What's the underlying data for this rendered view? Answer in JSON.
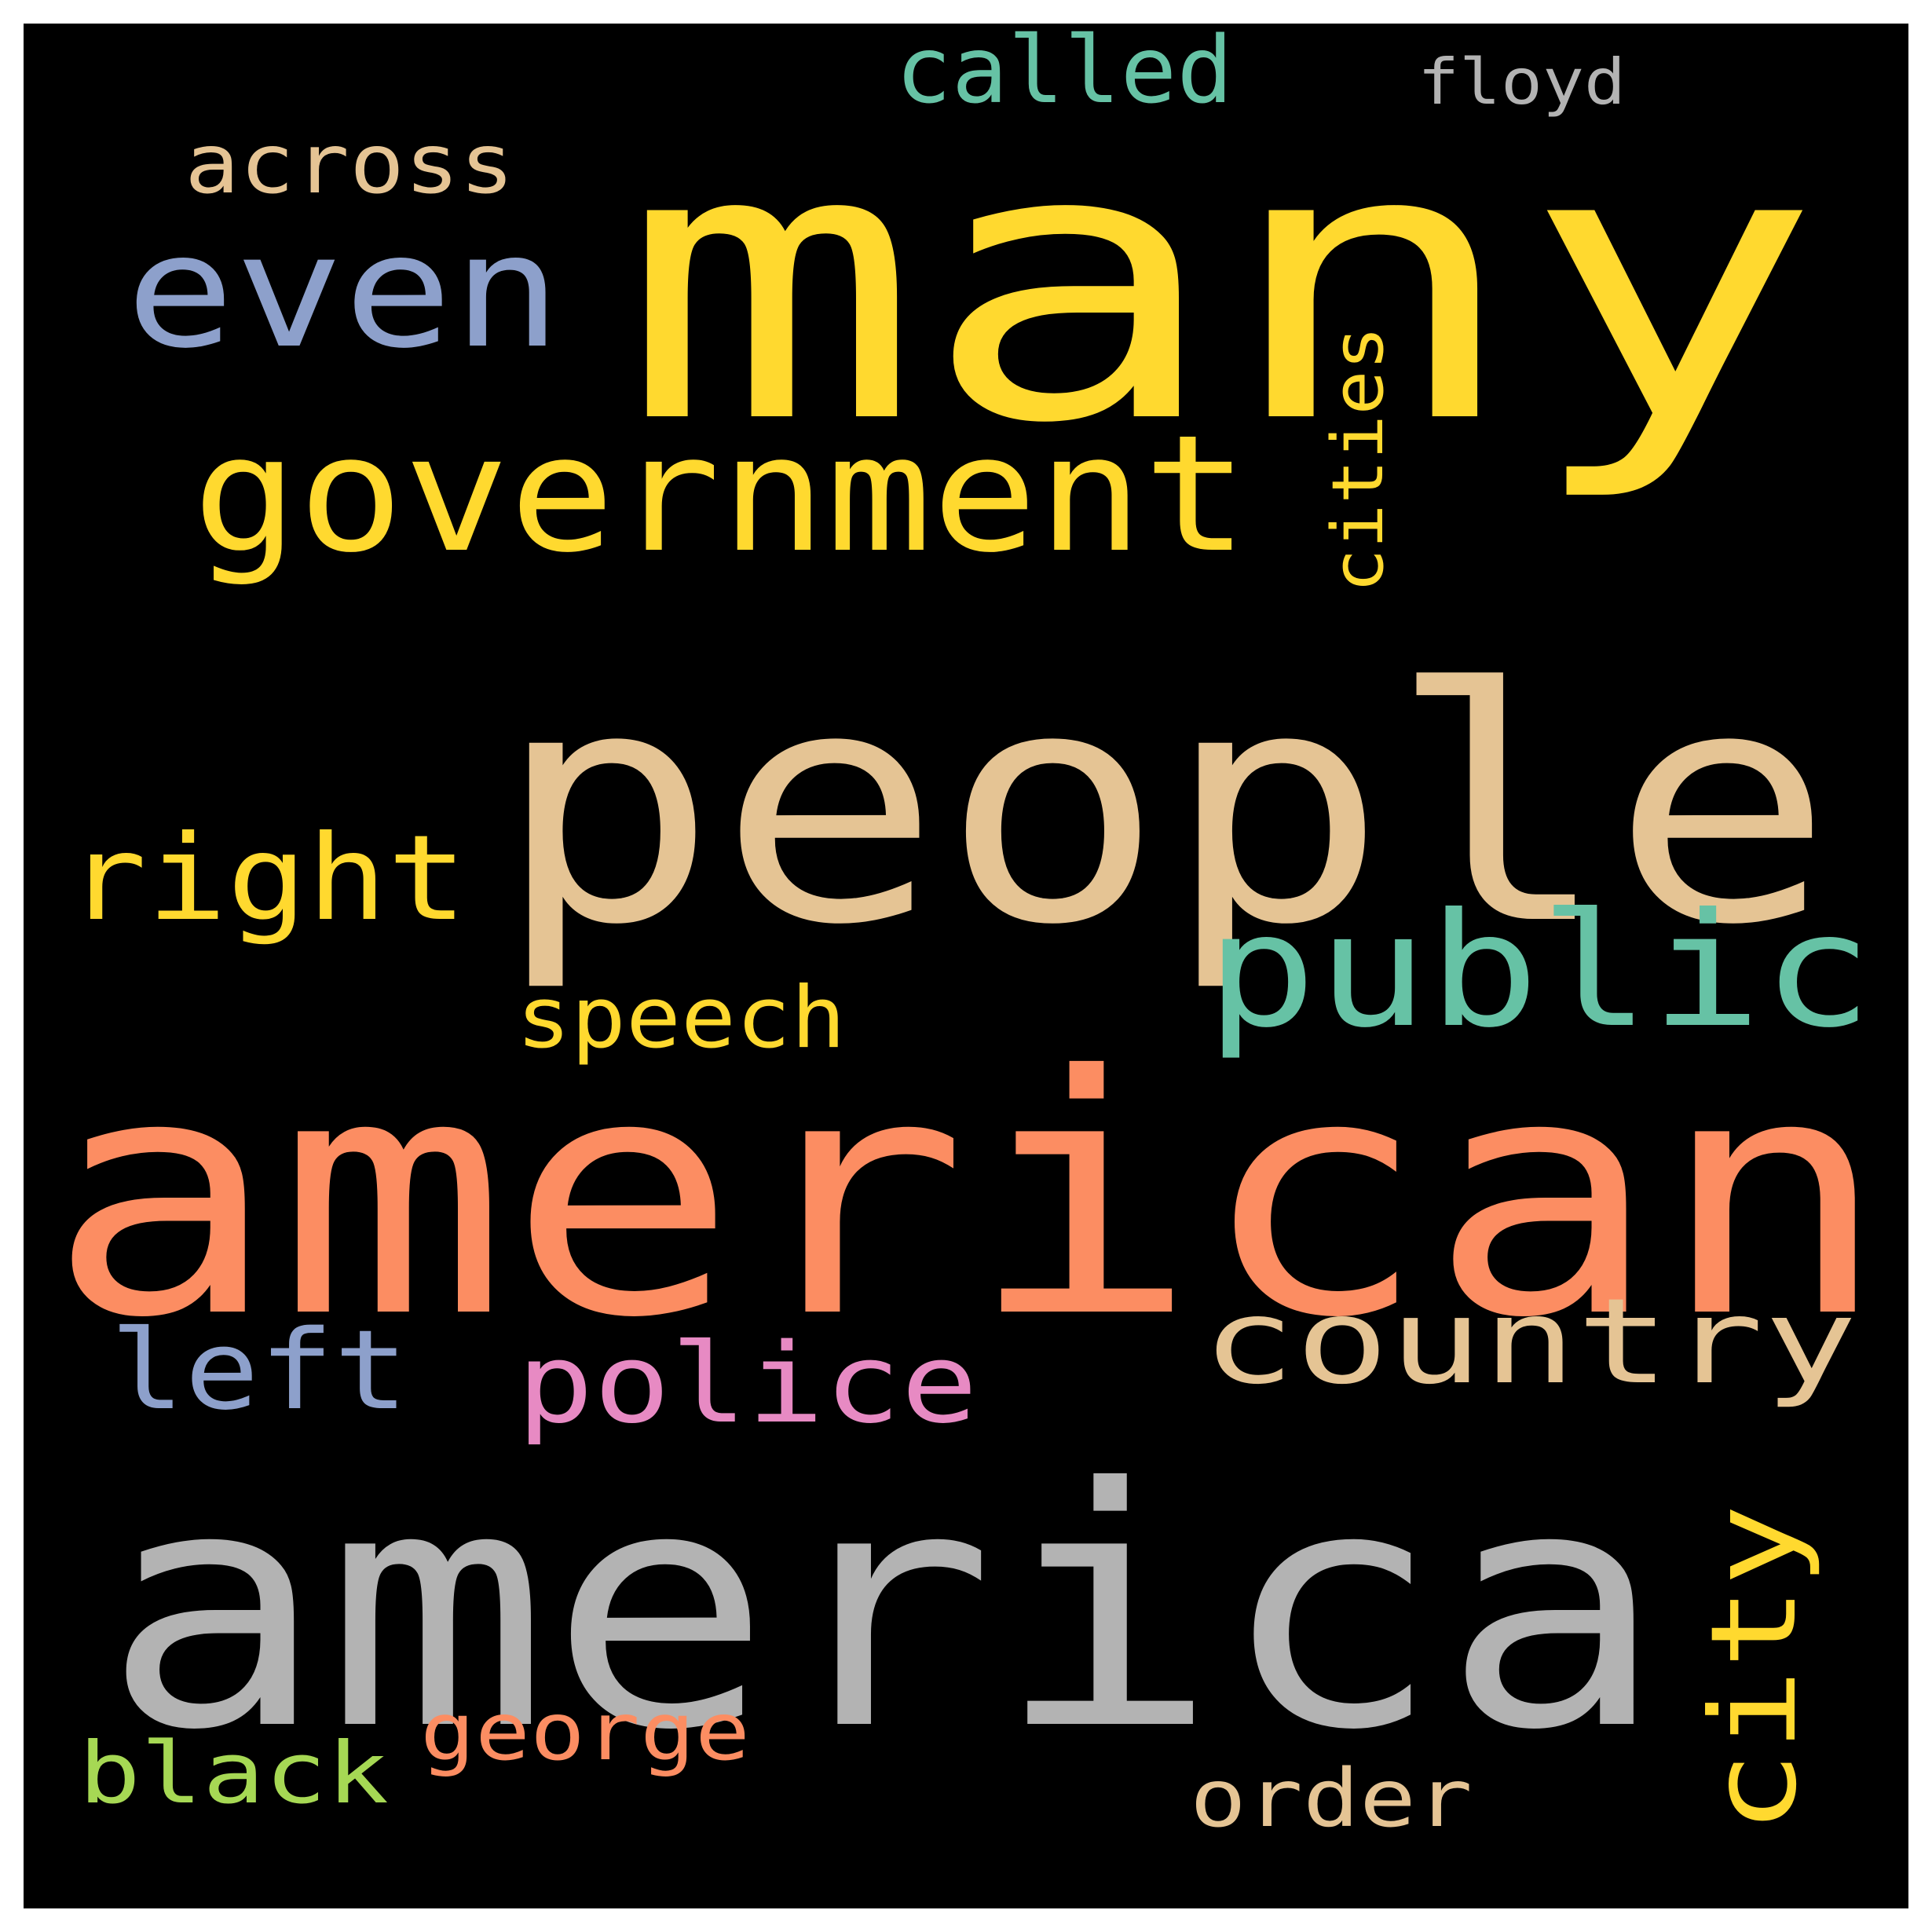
{
  "canvas": {
    "background": "#000000",
    "border": "#ffffff"
  },
  "words": [
    {
      "key": "many",
      "text": "many",
      "color": "#FFD92F"
    },
    {
      "key": "people",
      "text": "people",
      "color": "#E5C494"
    },
    {
      "key": "american",
      "text": "american",
      "color": "#FC8D62"
    },
    {
      "key": "america",
      "text": "america",
      "color": "#B3B3B3"
    },
    {
      "key": "government",
      "text": "government",
      "color": "#FFD92F"
    },
    {
      "key": "even",
      "text": "even",
      "color": "#8DA0CB"
    },
    {
      "key": "public",
      "text": "public",
      "color": "#66C2A5"
    },
    {
      "key": "country",
      "text": "country",
      "color": "#E5C494"
    },
    {
      "key": "right",
      "text": "right",
      "color": "#FFD92F"
    },
    {
      "key": "police",
      "text": "police",
      "color": "#E78AC3"
    },
    {
      "key": "left",
      "text": "left",
      "color": "#8DA0CB"
    },
    {
      "key": "city",
      "text": "city",
      "color": "#FFD92F"
    },
    {
      "key": "across",
      "text": "across",
      "color": "#E5C494"
    },
    {
      "key": "called",
      "text": "called",
      "color": "#66C2A5"
    },
    {
      "key": "speech",
      "text": "speech",
      "color": "#FFD92F"
    },
    {
      "key": "black",
      "text": "black",
      "color": "#A6D854"
    },
    {
      "key": "george",
      "text": "george",
      "color": "#FC8D62"
    },
    {
      "key": "order",
      "text": "order",
      "color": "#E5C494"
    },
    {
      "key": "cities",
      "text": "cities",
      "color": "#FFD92F"
    },
    {
      "key": "floyd",
      "text": "floyd",
      "color": "#B3B3B3"
    }
  ]
}
